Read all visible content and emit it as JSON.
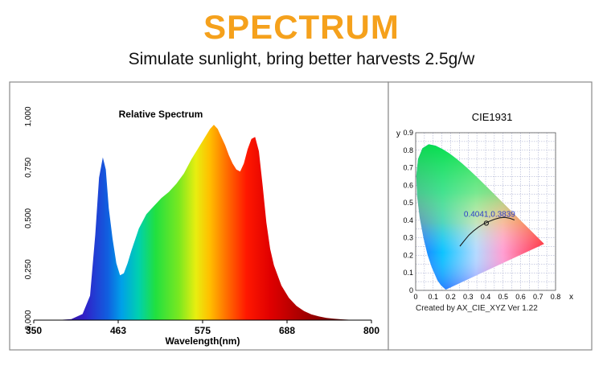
{
  "header": {
    "title": "SPECTRUM",
    "subtitle": "Simulate sunlight, bring better harvests 2.5g/w"
  },
  "colors": {
    "title": "#f5a11c",
    "panel_border": "#8a8a8a",
    "grid": "#9aa0c8",
    "locus_curve": "#1a1a1a",
    "point_label": "#2a3cc8"
  },
  "chart_data": [
    {
      "type": "area",
      "title": "Relative Spectrum",
      "xlabel": "Wavelength(nm)",
      "ylabel": "",
      "xlim": [
        350,
        800
      ],
      "ylim": [
        0,
        1
      ],
      "x_ticks": [
        "350",
        "463",
        "575",
        "688",
        "800"
      ],
      "y_ticks": [
        "0,000",
        "0,250",
        "0,500",
        "0,750",
        "1,000"
      ],
      "grid": false,
      "legend": "none",
      "fill": "wavelength-rainbow",
      "series": [
        {
          "x": [
            380,
            400,
            415,
            425,
            432,
            437,
            442,
            446,
            450,
            455,
            460,
            465,
            470,
            475,
            480,
            490,
            500,
            510,
            520,
            530,
            540,
            550,
            560,
            570,
            580,
            585,
            590,
            595,
            600,
            605,
            610,
            615,
            620,
            625,
            630,
            635,
            640,
            645,
            650,
            655,
            660,
            665,
            670,
            680,
            690,
            700,
            710,
            720,
            730,
            740,
            750,
            760,
            770,
            780,
            790,
            800
          ],
          "values": [
            0.0,
            0.005,
            0.03,
            0.12,
            0.42,
            0.7,
            0.8,
            0.74,
            0.55,
            0.4,
            0.28,
            0.22,
            0.23,
            0.28,
            0.34,
            0.45,
            0.52,
            0.56,
            0.6,
            0.63,
            0.67,
            0.72,
            0.79,
            0.85,
            0.91,
            0.94,
            0.96,
            0.94,
            0.9,
            0.86,
            0.81,
            0.77,
            0.74,
            0.73,
            0.77,
            0.84,
            0.89,
            0.9,
            0.83,
            0.66,
            0.48,
            0.35,
            0.27,
            0.17,
            0.11,
            0.07,
            0.045,
            0.028,
            0.018,
            0.011,
            0.007,
            0.004,
            0.002,
            0.001,
            0.0,
            0.0
          ]
        }
      ]
    },
    {
      "type": "scatter",
      "title": "CIE1931",
      "xlabel": "x",
      "ylabel": "y",
      "xlim": [
        0,
        0.8
      ],
      "ylim": [
        0,
        0.9
      ],
      "x_ticks": [
        "0",
        "0.1",
        "0.2",
        "0.3",
        "0.4",
        "0.5",
        "0.6",
        "0.7",
        "0.8"
      ],
      "y_ticks": [
        "0",
        "0.1",
        "0.2",
        "0.3",
        "0.4",
        "0.5",
        "0.6",
        "0.7",
        "0.8",
        "0.9"
      ],
      "grid": true,
      "legend": "none",
      "point": {
        "x": 0.4041,
        "y": 0.3839,
        "label": "0.4041,0.3839"
      },
      "planckian_locus": {
        "x": [
          0.253,
          0.28,
          0.305,
          0.33,
          0.36,
          0.39,
          0.42,
          0.45,
          0.48,
          0.51,
          0.54,
          0.565
        ],
        "y": [
          0.252,
          0.286,
          0.316,
          0.339,
          0.362,
          0.38,
          0.394,
          0.406,
          0.414,
          0.417,
          0.411,
          0.402
        ]
      },
      "spectral_locus": {
        "x": [
          0.1741,
          0.1738,
          0.1726,
          0.1689,
          0.1644,
          0.1566,
          0.144,
          0.1241,
          0.0913,
          0.0687,
          0.0454,
          0.0235,
          0.0082,
          0.0039,
          0.0139,
          0.0389,
          0.0743,
          0.1142,
          0.1547,
          0.1929,
          0.2296,
          0.2658,
          0.3016,
          0.3373,
          0.3731,
          0.4087,
          0.4441,
          0.4788,
          0.5125,
          0.5448,
          0.5752,
          0.6029,
          0.627,
          0.6482,
          0.6658,
          0.6801,
          0.6915,
          0.7006,
          0.7079,
          0.714,
          0.719,
          0.7347
        ],
        "y": [
          0.005,
          0.0049,
          0.0048,
          0.0069,
          0.0109,
          0.0177,
          0.0297,
          0.0578,
          0.1327,
          0.2007,
          0.295,
          0.4127,
          0.5384,
          0.6548,
          0.7502,
          0.812,
          0.8338,
          0.8262,
          0.8059,
          0.7816,
          0.7543,
          0.7243,
          0.6923,
          0.6589,
          0.6245,
          0.5896,
          0.5547,
          0.5202,
          0.4866,
          0.4544,
          0.4242,
          0.3965,
          0.3725,
          0.3514,
          0.334,
          0.3197,
          0.3083,
          0.2993,
          0.292,
          0.2859,
          0.2809,
          0.2653
        ]
      },
      "footnote": "Created by AX_CIE_XYZ Ver 1.22"
    }
  ]
}
